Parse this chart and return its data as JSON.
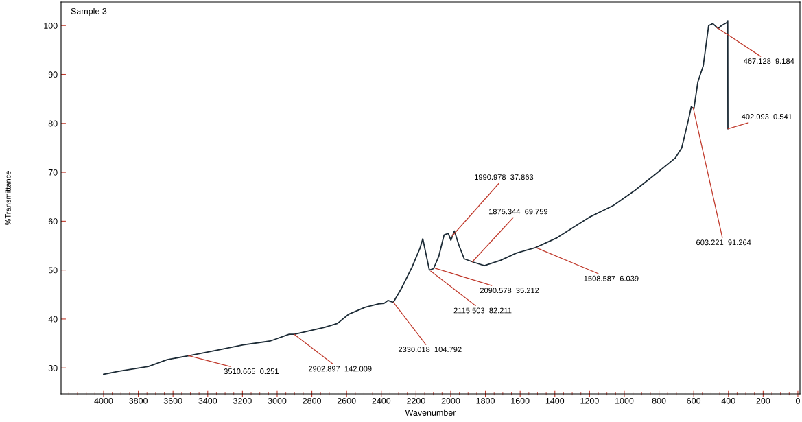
{
  "chart_data": {
    "type": "line",
    "title": "Sample 3",
    "xlabel": "Wavenumber",
    "ylabel": "%Transmittance",
    "xlim": [
      4245,
      -12
    ],
    "ylim": [
      24.7,
      104.8
    ],
    "xticks": [
      4000,
      3800,
      3600,
      3400,
      3200,
      3000,
      2800,
      2600,
      2400,
      2200,
      2000,
      1800,
      1600,
      1400,
      1200,
      1000,
      800,
      600,
      400,
      200,
      0
    ],
    "yticks": [
      30,
      40,
      50,
      60,
      70,
      80,
      90,
      100
    ],
    "grid": false,
    "legend": false,
    "marker": "none",
    "line_style": "solid",
    "series": [
      {
        "color": "#1c2b36",
        "x": [
          4000,
          3914,
          3742,
          3633,
          3508,
          3352,
          3196,
          3040,
          2931,
          2900,
          2728,
          2653,
          2587,
          2494,
          2416,
          2384,
          2361,
          2331,
          2285,
          2223,
          2177,
          2161,
          2146,
          2123,
          2099,
          2069,
          2038,
          2014,
          1999,
          1979,
          1952,
          1922,
          1867,
          1806,
          1713,
          1620,
          1512,
          1388,
          1202,
          1063,
          939,
          831,
          707,
          669,
          630,
          614,
          599,
          576,
          545,
          514,
          490,
          459,
          440,
          410,
          404,
          403
        ],
        "values": [
          28.7,
          29.3,
          30.3,
          31.7,
          32.5,
          33.6,
          34.7,
          35.5,
          36.9,
          36.9,
          38.3,
          39.1,
          41.0,
          42.4,
          43.1,
          43.2,
          43.8,
          43.4,
          46.2,
          50.6,
          54.5,
          56.4,
          53.9,
          50.0,
          50.3,
          52.8,
          57.2,
          57.5,
          56.1,
          58.0,
          55.0,
          52.3,
          51.6,
          50.9,
          52.0,
          53.5,
          54.6,
          56.6,
          60.8,
          63.2,
          66.3,
          69.3,
          72.9,
          75.0,
          80.8,
          83.4,
          83.0,
          88.5,
          91.8,
          100.0,
          100.4,
          99.4,
          100.0,
          100.6,
          101.0,
          78.9
        ]
      }
    ],
    "annotations": [
      {
        "text": "3510.665  0.251",
        "x": 3510.665,
        "y": 32.5
      },
      {
        "text": "2902.897  142.009",
        "x": 2902.897,
        "y": 36.9
      },
      {
        "text": "2330.018  104.792",
        "x": 2330.018,
        "y": 43.4
      },
      {
        "text": "2115.503  82.211",
        "x": 2115.503,
        "y": 49.8
      },
      {
        "text": "2090.578  35.212",
        "x": 2090.578,
        "y": 50.4
      },
      {
        "text": "1990.978  37.863",
        "x": 1990.978,
        "y": 57.0
      },
      {
        "text": "1875.344  69.759",
        "x": 1875.344,
        "y": 51.7
      },
      {
        "text": "1508.587  6.039",
        "x": 1508.587,
        "y": 54.6
      },
      {
        "text": "603.221  91.264",
        "x": 603.221,
        "y": 83.2
      },
      {
        "text": "467.128  9.184",
        "x": 467.128,
        "y": 99.6
      },
      {
        "text": "402.093  0.541",
        "x": 402.093,
        "y": 78.9
      }
    ]
  }
}
